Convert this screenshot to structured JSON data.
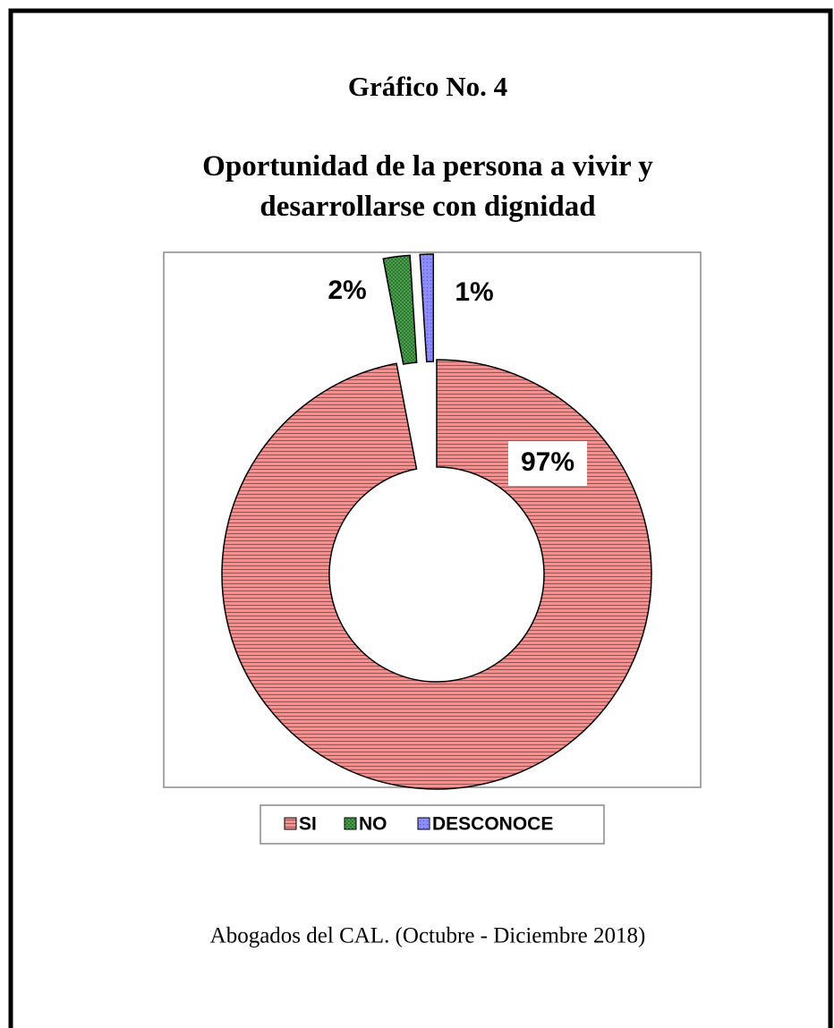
{
  "chart_data": {
    "type": "donut",
    "title": "Gráfico No. 4",
    "subtitle": "Oportunidad de la persona a vivir y desarrollarse con dignidad",
    "categories": [
      "SI",
      "NO",
      "DESCONOCE"
    ],
    "values": [
      97,
      2,
      1
    ],
    "value_labels": [
      "97%",
      "2%",
      "1%"
    ],
    "colors": [
      "#ff8c8c",
      "#4caf50",
      "#8c8cff"
    ],
    "source": "Abogados del CAL. (Octubre - Diciembre 2018)",
    "legend": "bottom"
  }
}
